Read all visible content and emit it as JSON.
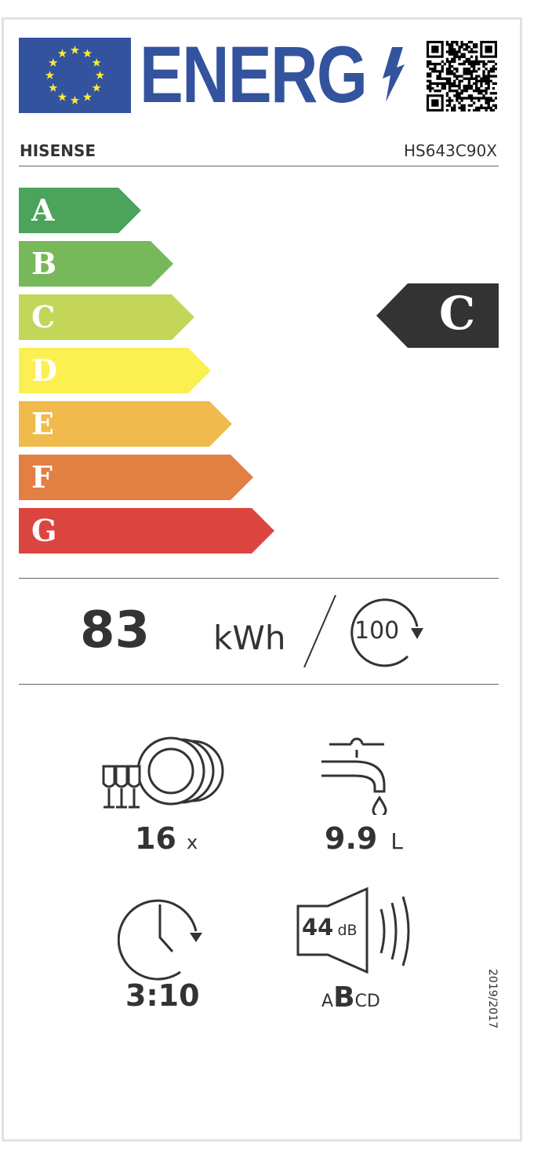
{
  "header": {
    "logo_text": "ENERG",
    "brand": "HISENSE",
    "model": "HS643C90X"
  },
  "scale": {
    "classes": [
      {
        "label": "A",
        "color": "#4ca35b"
      },
      {
        "label": "B",
        "color": "#76b85a"
      },
      {
        "label": "C",
        "color": "#c3d65a"
      },
      {
        "label": "D",
        "color": "#fbf051"
      },
      {
        "label": "E",
        "color": "#f0bb4c"
      },
      {
        "label": "F",
        "color": "#e27f43"
      },
      {
        "label": "G",
        "color": "#db4540"
      }
    ],
    "rating": "C",
    "rating_color": "#333333"
  },
  "energy": {
    "value": "83",
    "unit": "kWh",
    "cycles": "100"
  },
  "specs": {
    "capacity": {
      "value": "16",
      "unit": "x"
    },
    "water": {
      "value": "9.9",
      "unit": "L"
    },
    "duration": {
      "value": "3:10"
    },
    "noise": {
      "value": "44",
      "unit": "dB",
      "classes": [
        "A",
        "B",
        "C",
        "D"
      ],
      "selected": "B"
    }
  },
  "regulation": "2019/2017",
  "colors": {
    "eu_blue": "#33539f",
    "star_yellow": "#f6e93b"
  }
}
